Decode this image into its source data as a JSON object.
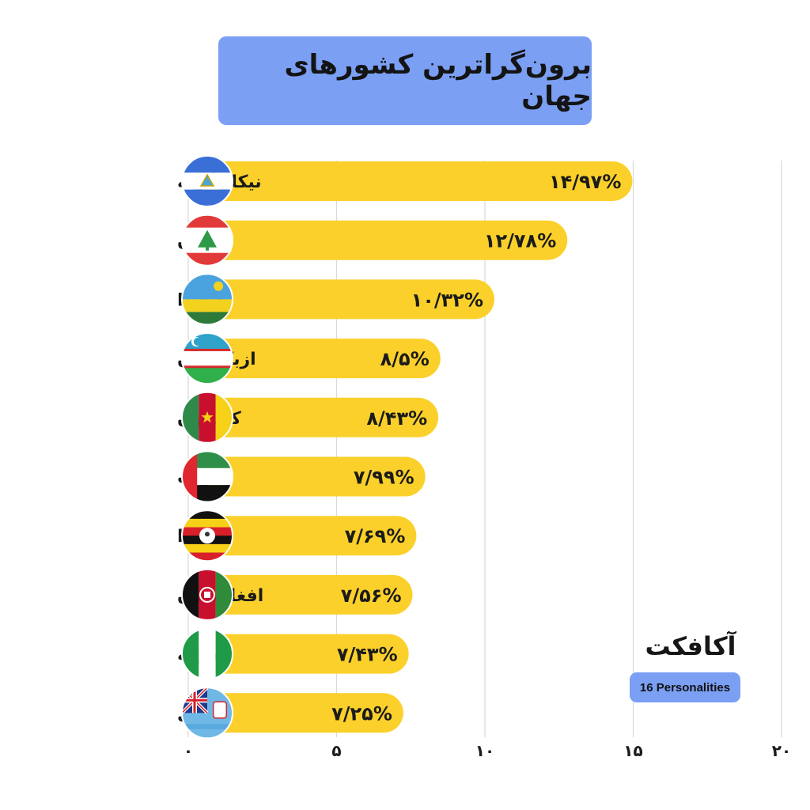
{
  "title": "برون‌گراترین کشورهای جهان",
  "brand": {
    "logo_text": "آکافکت",
    "source": "16 Personalities"
  },
  "colors": {
    "bar": "#fbd02a",
    "title_bg": "#7b9ff3",
    "grid": "#d9d9d9"
  },
  "chart_data": {
    "type": "bar",
    "orientation": "horizontal",
    "title": "برون‌گراترین کشورهای جهان",
    "categories": [
      "نیکاراگوئه",
      "لبنان",
      "راواندا",
      "ازبکستان",
      "کامرون",
      "امارات",
      "اوگاندا",
      "افغانستان",
      "نیجریه",
      "فیجی"
    ],
    "values": [
      14.97,
      12.78,
      10.32,
      8.5,
      8.43,
      7.99,
      7.69,
      7.56,
      7.43,
      7.25
    ],
    "value_labels": [
      "۱۴/۹۷%",
      "۱۲/۷۸%",
      "۱۰/۳۲%",
      "۸/۵%",
      "۸/۴۳%",
      "۷/۹۹%",
      "۷/۶۹%",
      "۷/۵۶%",
      "۷/۴۳%",
      "۷/۲۵%"
    ],
    "flags": [
      "nicaragua-flag-icon",
      "lebanon-flag-icon",
      "rwanda-flag-icon",
      "uzbekistan-flag-icon",
      "cameroon-flag-icon",
      "uae-flag-icon",
      "uganda-flag-icon",
      "afghanistan-flag-icon",
      "nigeria-flag-icon",
      "fiji-flag-icon"
    ],
    "xlim": [
      0,
      20
    ],
    "x_ticks": [
      0,
      5,
      10,
      15,
      20
    ],
    "x_tick_labels": [
      "۰",
      "۵",
      "۱۰",
      "۱۵",
      "۲۰"
    ],
    "grid": true,
    "xlabel": "",
    "ylabel": ""
  }
}
